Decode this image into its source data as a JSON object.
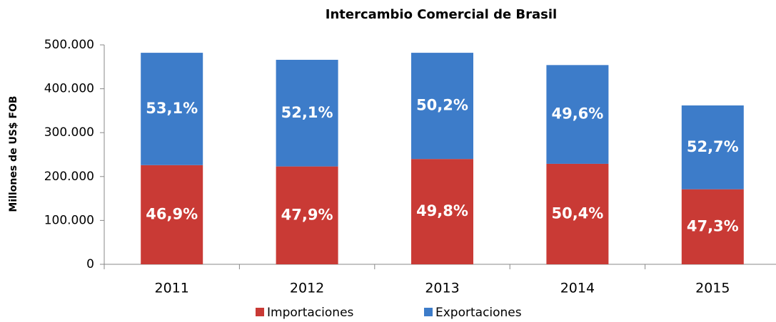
{
  "chart_data": {
    "type": "stacked_bar",
    "title": "Intercambio Comercial de Brasil",
    "y_label": "Millones de US$ FOB",
    "categories": [
      "2011",
      "2012",
      "2013",
      "2014",
      "2015"
    ],
    "series": [
      {
        "name": "Importaciones",
        "color": "#c93a35",
        "values": [
          226000,
          223000,
          240000,
          229000,
          171000
        ],
        "labels": [
          "46,9%",
          "47,9%",
          "49,8%",
          "50,4%",
          "47,3%"
        ]
      },
      {
        "name": "Exportaciones",
        "color": "#3d7cc9",
        "values": [
          256000,
          243000,
          242000,
          225000,
          191000
        ],
        "labels": [
          "53,1%",
          "52,1%",
          "50,2%",
          "49,6%",
          "52,7%"
        ]
      }
    ],
    "ylim": [
      0,
      500000
    ],
    "yticks": [
      0,
      {
        "value": 100000,
        "label": "100.000"
      },
      {
        "value": 200000,
        "label": "200.000"
      },
      {
        "value": 300000,
        "label": "300.000"
      },
      {
        "value": 400000,
        "label": "400.000"
      },
      {
        "value": 500000,
        "label": "500.000"
      }
    ],
    "legend": "bottom"
  }
}
